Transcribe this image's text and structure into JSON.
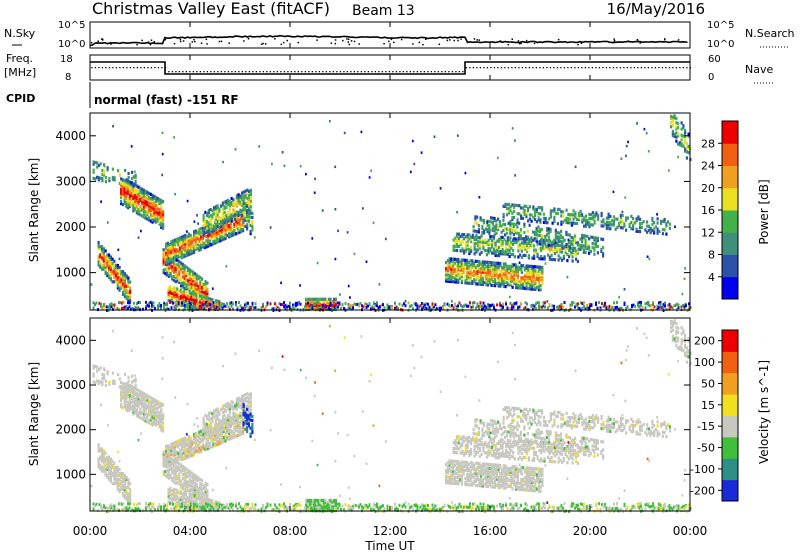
{
  "header": {
    "title": "Christmas Valley East (fitACF)",
    "beam": "Beam 13",
    "date": "16/May/2016"
  },
  "top_panels": {
    "nsky_label": "N.Sky",
    "nsky_ticks": [
      "10^5",
      "10^0"
    ],
    "nsearch_label": "N.Search",
    "nsearch_ticks": [
      "10^5",
      "10^0"
    ],
    "freq_label": "Freq.",
    "freq_unit": "[MHz]",
    "freq_ticks": [
      "18",
      "8"
    ],
    "nave_label": "Nave",
    "nave_ticks": [
      "60",
      "0"
    ],
    "cpid_label": "CPID",
    "cpid_text": "normal (fast) -151 RF"
  },
  "chart_data": [
    {
      "type": "heatmap",
      "name": "power",
      "ylabel": "Slant Range [km]",
      "yticks": [
        "4000",
        "3000",
        "2000",
        "1000"
      ],
      "ylim": [
        180,
        4500
      ],
      "colorbar_label": "Power [dB]",
      "colorbar_ticks": [
        "28",
        "24",
        "20",
        "16",
        "12",
        "8",
        "4"
      ],
      "colorbar_colors": [
        "#0000ee",
        "#2a52a8",
        "#3f8f7a",
        "#44b04a",
        "#e8e020",
        "#f0a020",
        "#f06010",
        "#ee0000"
      ]
    },
    {
      "type": "heatmap",
      "name": "velocity",
      "ylabel": "Slant Range [km]",
      "yticks": [
        "4000",
        "3000",
        "2000",
        "1000"
      ],
      "ylim": [
        180,
        4500
      ],
      "colorbar_label": "Velocity [m s^-1]",
      "colorbar_ticks": [
        "200",
        "100",
        "50",
        "15",
        "-15",
        "-50",
        "-100",
        "-200"
      ],
      "colorbar_colors": [
        "#1a2ad8",
        "#2d8f86",
        "#40c03a",
        "#c8c8c0",
        "#f0e020",
        "#f0a020",
        "#f06010",
        "#ee0000"
      ]
    }
  ],
  "xaxis": {
    "label": "Time UT",
    "ticks": [
      "00:00",
      "04:00",
      "08:00",
      "12:00",
      "16:00",
      "20:00",
      "00:00"
    ],
    "range_hours": [
      0,
      24
    ]
  }
}
